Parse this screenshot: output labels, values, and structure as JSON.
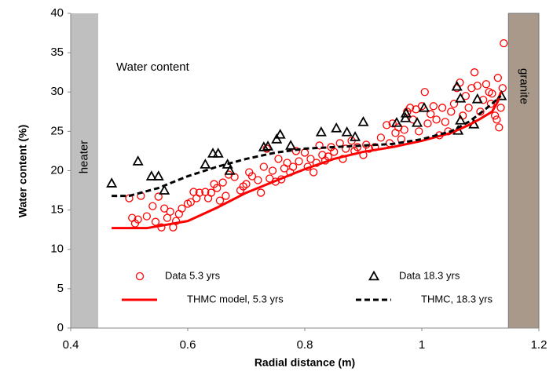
{
  "chart_data": {
    "type": "scatter",
    "title": "Water content",
    "xlabel": "Radial distance (m)",
    "ylabel": "Water content (%)",
    "xlim": [
      0.4,
      1.2
    ],
    "xticks": [
      0.4,
      0.6,
      0.8,
      1,
      1.2
    ],
    "ylim": [
      0,
      40
    ],
    "yticks": [
      0,
      5,
      10,
      15,
      20,
      25,
      30,
      35,
      40
    ],
    "grid": false,
    "legend": "lower center",
    "regions": [
      {
        "label": "heater",
        "x": [
          0.4,
          0.447
        ],
        "color": "#bfbfbf"
      },
      {
        "label": "granite",
        "x": [
          1.148,
          1.2
        ],
        "color": "#a8998a"
      }
    ],
    "series": [
      {
        "name": "Data 5.3 yrs",
        "color": "#ff0000",
        "marker": "circle",
        "x": [
          0.5,
          0.505,
          0.51,
          0.515,
          0.52,
          0.53,
          0.54,
          0.545,
          0.55,
          0.555,
          0.56,
          0.565,
          0.57,
          0.575,
          0.58,
          0.585,
          0.59,
          0.6,
          0.605,
          0.61,
          0.615,
          0.62,
          0.63,
          0.635,
          0.64,
          0.645,
          0.65,
          0.655,
          0.66,
          0.665,
          0.67,
          0.68,
          0.69,
          0.695,
          0.7,
          0.705,
          0.71,
          0.72,
          0.725,
          0.73,
          0.735,
          0.74,
          0.745,
          0.75,
          0.755,
          0.76,
          0.765,
          0.77,
          0.775,
          0.78,
          0.785,
          0.79,
          0.8,
          0.805,
          0.81,
          0.815,
          0.82,
          0.825,
          0.83,
          0.835,
          0.84,
          0.845,
          0.85,
          0.86,
          0.865,
          0.87,
          0.88,
          0.885,
          0.89,
          0.9,
          0.905,
          0.91,
          0.92,
          0.93,
          0.94,
          0.945,
          0.95,
          0.955,
          0.96,
          0.965,
          0.97,
          0.975,
          0.98,
          0.985,
          0.99,
          0.995,
          1.0,
          1.005,
          1.01,
          1.015,
          1.02,
          1.025,
          1.03,
          1.035,
          1.04,
          1.045,
          1.05,
          1.055,
          1.06,
          1.065,
          1.07,
          1.075,
          1.08,
          1.085,
          1.09,
          1.095,
          1.1,
          1.105,
          1.11,
          1.115,
          1.12,
          1.125,
          1.13,
          1.135,
          1.138,
          1.14,
          1.128,
          1.132,
          1.118
        ],
        "values": [
          16.5,
          14.0,
          13.3,
          13.8,
          16.8,
          14.2,
          15.5,
          13.5,
          16.7,
          12.8,
          15.2,
          14.0,
          14.8,
          12.8,
          13.6,
          14.5,
          15.2,
          15.8,
          16.0,
          17.3,
          16.5,
          17.2,
          17.3,
          16.5,
          17.2,
          18.3,
          17.8,
          16.2,
          18.5,
          16.8,
          19.5,
          19.2,
          17.5,
          18.0,
          18.3,
          19.8,
          19.3,
          18.8,
          17.2,
          20.5,
          22.8,
          19.0,
          20.0,
          18.6,
          21.5,
          18.9,
          20.3,
          21.0,
          19.8,
          20.5,
          22.5,
          21.2,
          22.3,
          20.5,
          21.5,
          19.8,
          21.0,
          23.2,
          22.0,
          21.3,
          21.8,
          23.0,
          22.4,
          23.5,
          21.5,
          22.8,
          23.8,
          22.5,
          23.0,
          22.0,
          23.3,
          22.8,
          23.0,
          24.2,
          25.8,
          23.5,
          26.0,
          24.8,
          25.5,
          24.0,
          25.2,
          27.5,
          28.0,
          26.5,
          27.8,
          25.0,
          28.2,
          30.0,
          26.0,
          27.2,
          28.2,
          26.5,
          24.5,
          28.0,
          26.2,
          25.0,
          27.5,
          28.5,
          30.5,
          31.2,
          27.0,
          29.5,
          28.0,
          30.5,
          32.5,
          30.8,
          27.5,
          29.0,
          31.0,
          30.0,
          29.8,
          27.0,
          31.8,
          28.0,
          30.5,
          36.2,
          26.5,
          25.5,
          28.5
        ]
      },
      {
        "name": "Data 18.3 yrs",
        "color": "#000000",
        "marker": "triangle",
        "x": [
          0.47,
          0.515,
          0.538,
          0.55,
          0.56,
          0.63,
          0.643,
          0.652,
          0.668,
          0.672,
          0.73,
          0.737,
          0.752,
          0.758,
          0.776,
          0.828,
          0.854,
          0.872,
          0.886,
          0.9,
          0.957,
          0.972,
          0.973,
          0.992,
          1.004,
          1.062,
          1.066,
          1.066,
          1.06,
          1.095,
          1.089,
          1.136
        ],
        "values": [
          18.4,
          21.2,
          19.3,
          19.3,
          17.5,
          20.8,
          22.2,
          22.2,
          20.8,
          20.0,
          23.0,
          23.1,
          24.0,
          24.6,
          23.2,
          24.9,
          25.4,
          24.9,
          24.3,
          26.2,
          26.1,
          26.7,
          27.3,
          26.1,
          28.0,
          25.1,
          26.4,
          29.2,
          30.7,
          29.1,
          25.9,
          29.5
        ]
      },
      {
        "name": "THMC model, 5.3 yrs",
        "color": "#ff0000",
        "line_style": "solid",
        "x": [
          0.47,
          0.53,
          0.6,
          0.65,
          0.7,
          0.75,
          0.8,
          0.85,
          0.9,
          0.95,
          1.0,
          1.05,
          1.08,
          1.1,
          1.12,
          1.13,
          1.135
        ],
        "values": [
          12.7,
          12.7,
          13.6,
          15.3,
          17.2,
          18.7,
          20.2,
          21.5,
          22.4,
          23.0,
          23.8,
          24.8,
          25.8,
          26.6,
          27.5,
          28.8,
          30.0
        ]
      },
      {
        "name": "THMC, 18.3 yrs",
        "color": "#000000",
        "line_style": "dashed",
        "x": [
          0.47,
          0.5,
          0.55,
          0.6,
          0.65,
          0.7,
          0.75,
          0.8,
          0.85,
          0.9,
          0.95,
          1.0,
          1.05,
          1.08,
          1.1,
          1.12,
          1.135
        ],
        "values": [
          16.8,
          16.8,
          17.8,
          19.3,
          20.5,
          21.5,
          22.3,
          22.8,
          23.0,
          23.2,
          23.4,
          24.0,
          25.0,
          26.2,
          27.3,
          28.5,
          29.5
        ]
      }
    ]
  }
}
